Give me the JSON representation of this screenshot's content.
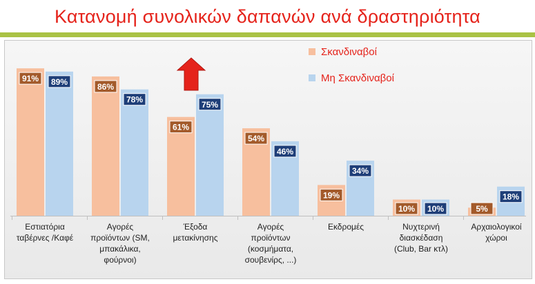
{
  "title": "Κατανομή συνολικών δαπανών ανά δραστηριότητα",
  "colors": {
    "title": "#e5231b",
    "title_bar": "#a9c244",
    "series_1": "#f7bf9e",
    "series_1_label_bg": "#a35a2a",
    "series_2": "#b8d4ee",
    "series_2_label_bg": "#1e3e78",
    "legend_text": "#e5231b",
    "arrow": "#e5231b"
  },
  "icons": {
    "arrow": "up-arrow-icon"
  },
  "chart_data": {
    "type": "bar",
    "categories": [
      [
        "Εστιατόρια",
        "ταβέρνες /Καφέ"
      ],
      [
        "Αγορές",
        "προϊόντων (SM,",
        "μπακάλικα,",
        "φούρνοι)"
      ],
      [
        "Έξοδα",
        "μετακίνησης"
      ],
      [
        "Αγορές",
        "προϊόντων",
        "(κοσμήματα,",
        "σουβενίρς, ...)"
      ],
      [
        "Εκδρομές"
      ],
      [
        "Νυχτερινή",
        "διασκέδαση",
        "(Club, Bar κτλ)"
      ],
      [
        "Αρχαιολογικοί",
        "χώροι"
      ]
    ],
    "series": [
      {
        "name": "Σκανδιναβοί",
        "values": [
          91,
          86,
          61,
          54,
          19,
          10,
          5
        ],
        "labels": [
          "91%",
          "86%",
          "61%",
          "54%",
          "19%",
          "10%",
          "5%"
        ]
      },
      {
        "name": "Μη Σκανδιναβοί",
        "values": [
          89,
          78,
          75,
          46,
          34,
          10,
          18
        ],
        "labels": [
          "89%",
          "78%",
          "75%",
          "46%",
          "34%",
          "10%",
          "18%"
        ]
      }
    ],
    "ylim": [
      0,
      100
    ],
    "grid": false,
    "legend": "top-right"
  }
}
